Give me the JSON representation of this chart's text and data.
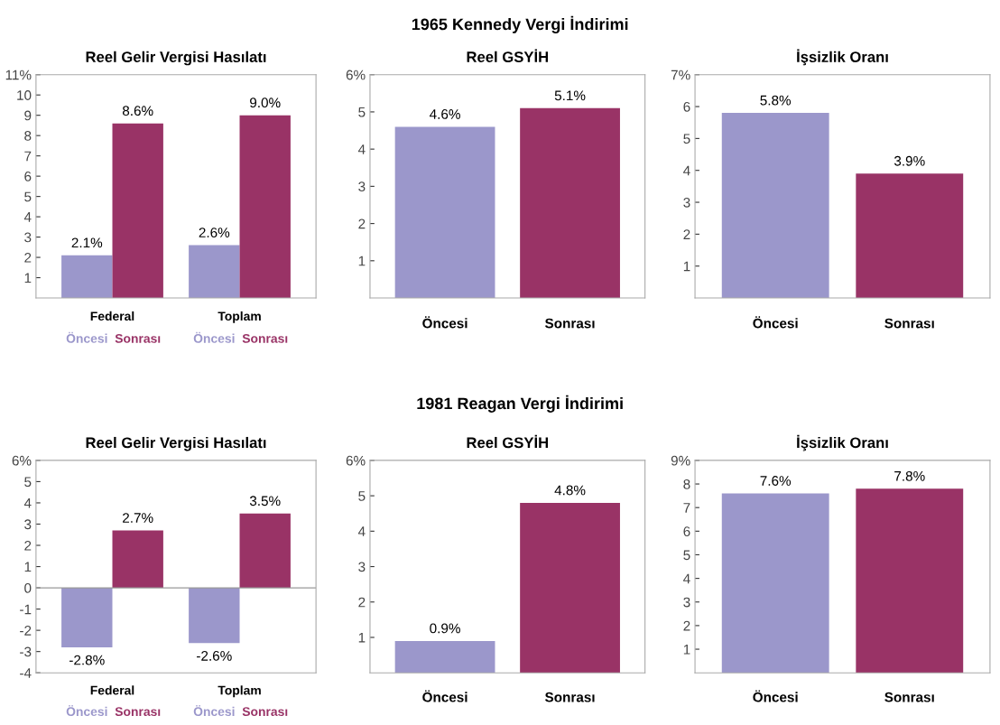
{
  "chart_data": [
    {
      "type": "bar",
      "title": "Reel Gelir Vergisi Hasılatı",
      "annotations": [
        "1965 Kennedy Vergi İndirimi"
      ],
      "categories": [
        "Federal",
        "Toplam"
      ],
      "series": [
        {
          "name": "Öncesi",
          "color": "#9b97cb",
          "values": [
            2.1,
            2.6
          ],
          "value_labels": [
            "2.1%",
            "2.6%"
          ]
        },
        {
          "name": "Sonrası",
          "color": "#993366",
          "values": [
            8.6,
            9.0
          ],
          "value_labels": [
            "8.6%",
            "9.0%"
          ]
        }
      ],
      "ylim": [
        0,
        11
      ],
      "yticks": [
        1,
        2,
        3,
        4,
        5,
        6,
        7,
        8,
        9,
        10,
        {
          "value": 11,
          "label": "11%"
        }
      ]
    },
    {
      "type": "bar",
      "title": "Reel GSYİH",
      "categories": [
        "Öncesi",
        "Sonrası"
      ],
      "values": [
        4.6,
        5.1
      ],
      "colors": [
        "#9b97cb",
        "#993366"
      ],
      "value_labels": [
        "4.6%",
        "5.1%"
      ],
      "ylim": [
        0,
        6
      ],
      "yticks": [
        1,
        2,
        3,
        4,
        5,
        {
          "value": 6,
          "label": "6%"
        }
      ]
    },
    {
      "type": "bar",
      "title": "İşsizlik Oranı",
      "categories": [
        "Öncesi",
        "Sonrası"
      ],
      "values": [
        5.8,
        3.9
      ],
      "colors": [
        "#9b97cb",
        "#993366"
      ],
      "value_labels": [
        "5.8%",
        "3.9%"
      ],
      "ylim": [
        0,
        7
      ],
      "yticks": [
        1,
        2,
        3,
        4,
        5,
        6,
        {
          "value": 7,
          "label": "7%"
        }
      ]
    },
    {
      "type": "bar",
      "title": "Reel Gelir Vergisi Hasılatı",
      "annotations": [
        "1981 Reagan Vergi İndirimi"
      ],
      "categories": [
        "Federal",
        "Toplam"
      ],
      "series": [
        {
          "name": "Öncesi",
          "color": "#9b97cb",
          "values": [
            -2.8,
            -2.6
          ],
          "value_labels": [
            "-2.8%",
            "-2.6%"
          ]
        },
        {
          "name": "Sonrası",
          "color": "#993366",
          "values": [
            2.7,
            3.5
          ],
          "value_labels": [
            "2.7%",
            "3.5%"
          ]
        }
      ],
      "ylim": [
        -4,
        6
      ],
      "yticks": [
        -4,
        -3,
        -2,
        -1,
        0,
        1,
        2,
        3,
        4,
        5,
        {
          "value": 6,
          "label": "6%"
        }
      ],
      "ref_lines": [
        {
          "axis": "y",
          "value": 0,
          "color": "#999999"
        }
      ]
    },
    {
      "type": "bar",
      "title": "Reel GSYİH",
      "categories": [
        "Öncesi",
        "Sonrası"
      ],
      "values": [
        0.9,
        4.8
      ],
      "colors": [
        "#9b97cb",
        "#993366"
      ],
      "value_labels": [
        "0.9%",
        "4.8%"
      ],
      "ylim": [
        0,
        6
      ],
      "yticks": [
        1,
        2,
        3,
        4,
        5,
        {
          "value": 6,
          "label": "6%"
        }
      ]
    },
    {
      "type": "bar",
      "title": "İşsizlik Oranı",
      "categories": [
        "Öncesi",
        "Sonrası"
      ],
      "values": [
        7.6,
        7.8
      ],
      "colors": [
        "#9b97cb",
        "#993366"
      ],
      "value_labels": [
        "7.6%",
        "7.8%"
      ],
      "ylim": [
        0,
        9
      ],
      "yticks": [
        1,
        2,
        3,
        4,
        5,
        6,
        7,
        8,
        {
          "value": 9,
          "label": "9%"
        }
      ]
    }
  ]
}
